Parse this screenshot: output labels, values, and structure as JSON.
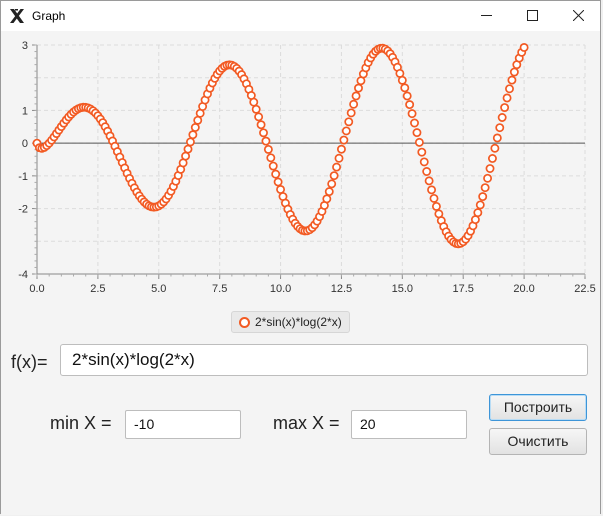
{
  "window": {
    "title": "Graph",
    "icon": "x-logo-icon"
  },
  "chart_data": {
    "type": "scatter",
    "title": "",
    "xlabel": "",
    "ylabel": "",
    "xlim": [
      0,
      22.5
    ],
    "ylim": [
      -4,
      3
    ],
    "x_ticks": [
      "0.0",
      "2.5",
      "5.0",
      "7.5",
      "10.0",
      "12.5",
      "15.0",
      "17.5",
      "20.0",
      "22.5"
    ],
    "x_tick_values": [
      0,
      2.5,
      5,
      7.5,
      10,
      12.5,
      15,
      17.5,
      20,
      22.5
    ],
    "y_ticks": [
      "3",
      "1",
      "0",
      "-1",
      "-2",
      "-4"
    ],
    "y_tick_values": [
      3,
      1,
      0,
      -1,
      -2,
      -4
    ],
    "grid": true,
    "legend_position": "bottom-center",
    "series": [
      {
        "name": "2*sin(x)*log(2*x)",
        "color": "#f25a23",
        "marker": "hollow-circle",
        "x_start": 0.0,
        "x_end": 20.2,
        "x_step": 0.1,
        "expression": "2*sin(x)*log10(2*x)"
      }
    ]
  },
  "form": {
    "fx_label": "f(x)=",
    "fx_value": "2*sin(x)*log(2*x)",
    "min_label": "min X =",
    "min_value": "-10",
    "max_label": "max X =",
    "max_value": "20"
  },
  "buttons": {
    "plot": "Построить",
    "clear": "Очистить"
  }
}
